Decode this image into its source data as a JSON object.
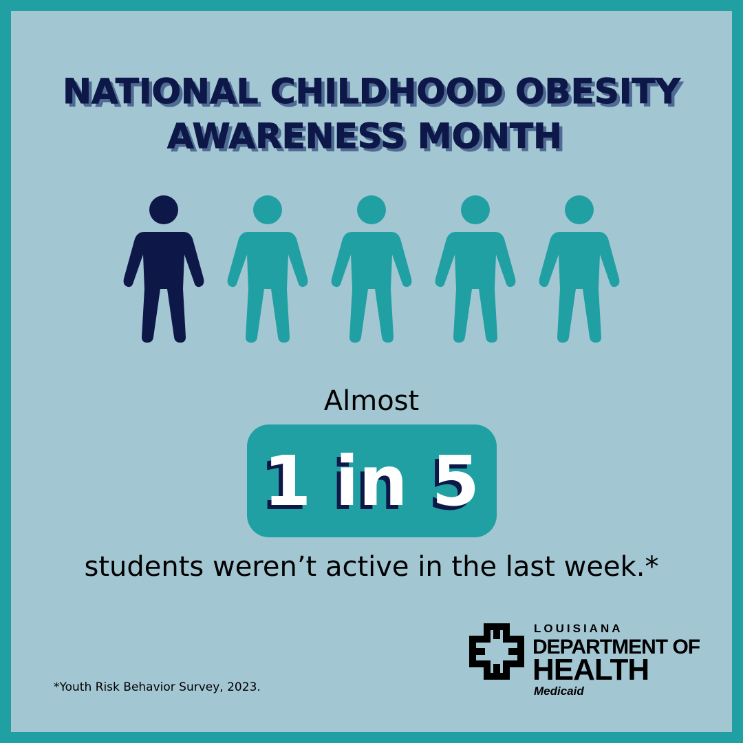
{
  "header": {
    "title_lines": [
      "NATIONAL CHILDHOOD OBESITY",
      "AWARENESS MONTH"
    ]
  },
  "stat": {
    "prefix": "Almost",
    "highlight": "1 in 5",
    "suffix": "students weren’t active in the last week.*"
  },
  "footnote": "*Youth Risk Behavior Survey, 2023.",
  "logo": {
    "state": "LOUISIANA",
    "line1": "DEPARTMENT OF",
    "line2": "HEALTH",
    "program": "Medicaid"
  }
}
